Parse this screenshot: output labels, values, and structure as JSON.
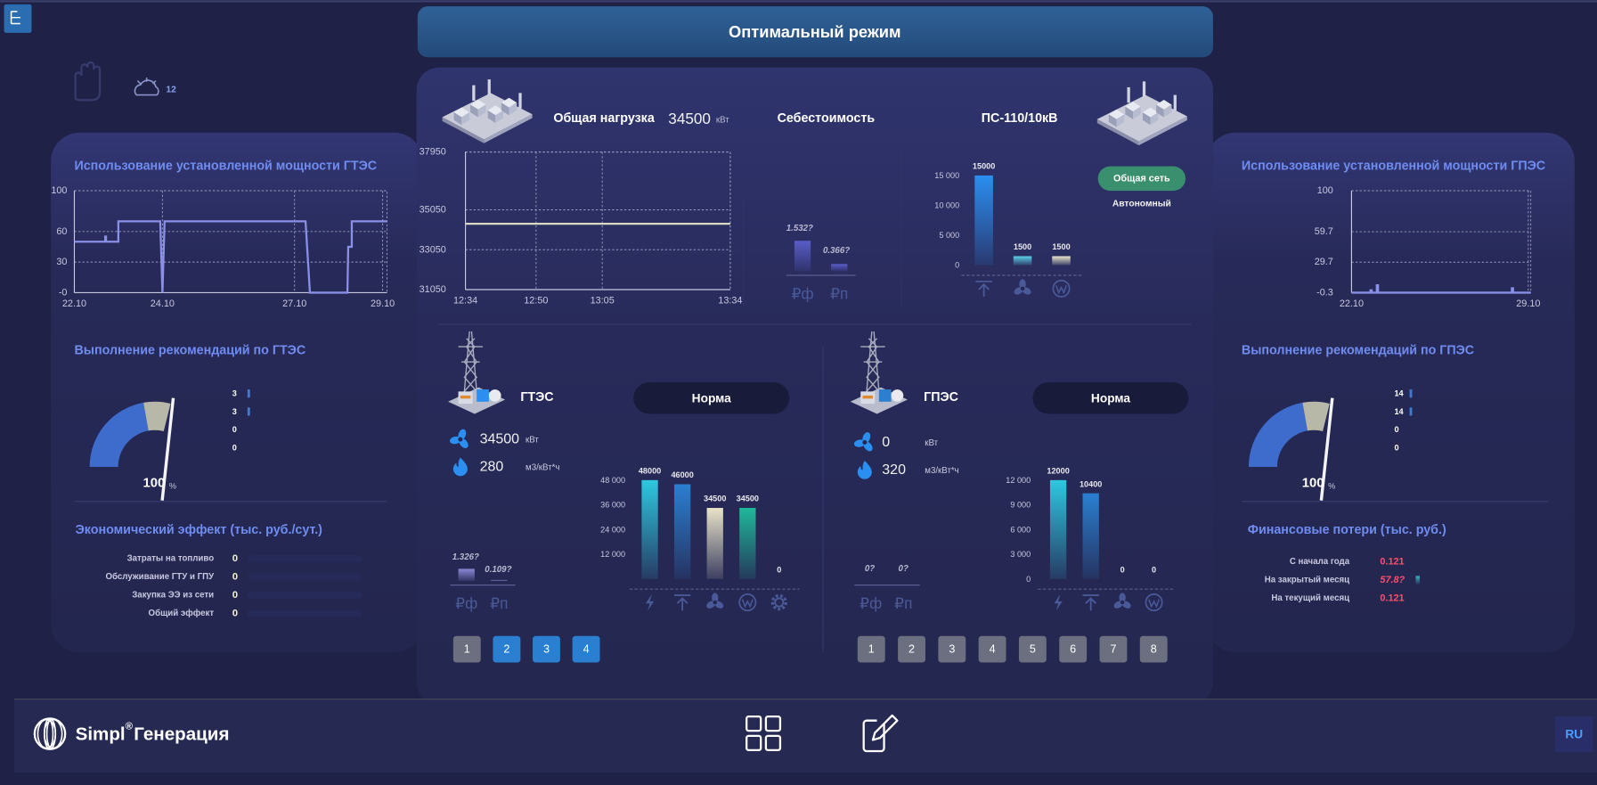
{
  "header": {
    "title": "Оптимальный режим"
  },
  "weather": {
    "temperature": 12
  },
  "gtes_usage": {
    "title": "Использование установленной мощности ГТЭС",
    "xlim": [
      22,
      29.1
    ],
    "ylim": [
      0,
      100
    ],
    "xticks": [
      {
        "value": 22,
        "label": "22.10"
      },
      {
        "value": 24,
        "label": "24.10"
      },
      {
        "value": 27,
        "label": "27.10"
      },
      {
        "value": 29,
        "label": "29.10"
      }
    ],
    "yticks": [
      {
        "value": 0,
        "label": "-0"
      },
      30,
      60,
      100
    ],
    "x": [
      22,
      22.7,
      22.7,
      22.72,
      22.72,
      23,
      23,
      23.95,
      24,
      24.05,
      27.25,
      27.35,
      28.2,
      28.22,
      28.3,
      28.3,
      29.1
    ],
    "values": [
      50,
      50,
      55,
      55,
      50,
      50,
      70,
      70,
      0,
      70,
      70,
      0,
      0,
      45,
      45,
      70,
      70
    ],
    "color": "#8a8fe8"
  },
  "gtes_recommendations": {
    "title": "Выполнение рекомендаций по ГТЭС",
    "value": 100,
    "unit": "%",
    "legend": [
      3,
      3,
      0,
      0
    ]
  },
  "economic_effect": {
    "title": "Экономический эффект (тыс. руб./сут.)",
    "rows": [
      {
        "label": "Затраты на топливо",
        "value": 0
      },
      {
        "label": "Обслуживание ГТУ и ГПУ",
        "value": 0
      },
      {
        "label": "Закупка ЭЭ из сети",
        "value": 0
      },
      {
        "label": "Общий эффект",
        "value": 0
      }
    ]
  },
  "total_load": {
    "title": "Общая нагрузка",
    "value": 34500,
    "unit": "кВт",
    "xlim": [
      "12:34",
      "13:34"
    ],
    "xticks": [
      "12:34",
      "12:50",
      "13:05",
      "13:34"
    ],
    "ylim": [
      31050,
      37950
    ],
    "yticks": [
      31050,
      33050,
      35050,
      37950
    ],
    "x": [
      "12:34",
      "13:34"
    ],
    "values": [
      34350,
      34350
    ],
    "color": "#d8d8c4"
  },
  "cost": {
    "title": "Себестоимость",
    "categories": [
      "₽ф",
      "₽п"
    ],
    "values": [
      1.532,
      0.366
    ],
    "value_labels": [
      "1.532?",
      "0.366?"
    ],
    "color": "#5a5cc8"
  },
  "substation": {
    "title": "ПС-110/10кВ",
    "ylim": [
      0,
      15000
    ],
    "yticks": [
      0,
      {
        "value": 5000,
        "label": "5 000"
      },
      {
        "value": 10000,
        "label": "10 000"
      },
      {
        "value": 15000,
        "label": "15 000"
      }
    ],
    "values": [
      15000,
      1500,
      1500
    ],
    "colors": [
      "#2a8ff0",
      "#5ad0e8",
      "#e8e4c8"
    ],
    "mode_active": "Общая сеть",
    "mode_inactive": "Автономный"
  },
  "gtes": {
    "name": "ГТЭС",
    "status": "Норма",
    "power": 34500,
    "power_unit": "кВт",
    "fuel": 280,
    "fuel_unit": "м3/кВт*ч",
    "cost": {
      "categories": [
        "₽ф",
        "₽п"
      ],
      "values": [
        1.326,
        0.109
      ],
      "value_labels": [
        "1.326?",
        "0.109?"
      ],
      "color": "#8a88d8"
    },
    "production": {
      "ylim": [
        0,
        48000
      ],
      "yticks": [
        {
          "value": 12000,
          "label": "12 000"
        },
        {
          "value": 24000,
          "label": "24 000"
        },
        {
          "value": 36000,
          "label": "36 000"
        },
        {
          "value": 48000,
          "label": "48 000"
        }
      ],
      "values": [
        48000,
        46000,
        34500,
        34500,
        0
      ],
      "colors": [
        "#2ec8e0",
        "#2a7fd0",
        "#e8e4c8",
        "#1fb89a",
        "#6a6e90"
      ]
    },
    "units": [
      {
        "number": 1,
        "active": false
      },
      {
        "number": 2,
        "active": true
      },
      {
        "number": 3,
        "active": true
      },
      {
        "number": 4,
        "active": true
      }
    ]
  },
  "gpes": {
    "name": "ГПЭС",
    "status": "Норма",
    "power": 0,
    "power_unit": "кВт",
    "fuel": 320,
    "fuel_unit": "м3/кВт*ч",
    "cost": {
      "categories": [
        "₽ф",
        "₽п"
      ],
      "values": [
        0,
        0
      ],
      "value_labels": [
        "0?",
        "0?"
      ],
      "color": "#8a88d8"
    },
    "production": {
      "ylim": [
        0,
        12000
      ],
      "yticks": [
        0,
        {
          "value": 3000,
          "label": "3 000"
        },
        {
          "value": 6000,
          "label": "6 000"
        },
        {
          "value": 9000,
          "label": "9 000"
        },
        {
          "value": 12000,
          "label": "12 000"
        }
      ],
      "values": [
        12000,
        10400,
        0,
        0
      ],
      "colors": [
        "#2ec8e0",
        "#2a7fd0",
        "#e8e4c8",
        "#1fb89a"
      ]
    },
    "units": [
      {
        "number": 1,
        "active": false
      },
      {
        "number": 2,
        "active": false
      },
      {
        "number": 3,
        "active": false
      },
      {
        "number": 4,
        "active": false
      },
      {
        "number": 5,
        "active": false
      },
      {
        "number": 6,
        "active": false
      },
      {
        "number": 7,
        "active": false
      },
      {
        "number": 8,
        "active": false
      }
    ]
  },
  "gpes_usage": {
    "title": "Использование установленной мощности ГПЭС",
    "xlim": [
      22,
      29.1
    ],
    "ylim": [
      -0.3,
      100
    ],
    "xticks": [
      {
        "value": 22,
        "label": "22.10"
      },
      {
        "value": 29,
        "label": "29.10"
      }
    ],
    "yticks": [
      -0.3,
      29.7,
      59.7,
      100
    ],
    "x": [
      22,
      22.75,
      22.75,
      22.8,
      22.8,
      23,
      23,
      23.05,
      23.05,
      28.35,
      28.35,
      28.4,
      28.4,
      29.1
    ],
    "values": [
      -0.3,
      -0.3,
      2,
      2,
      -0.3,
      -0.3,
      7,
      7,
      -0.3,
      -0.3,
      4,
      4,
      -0.3,
      -0.3
    ],
    "color": "#8a8fe8"
  },
  "gpes_recommendations": {
    "title": "Выполнение рекомендаций по ГПЭС",
    "value": 100,
    "unit": "%",
    "legend": [
      14,
      14,
      0,
      0
    ]
  },
  "financial_losses": {
    "title": "Финансовые потери (тыс. руб.)",
    "rows": [
      {
        "label": "С начала года",
        "value": 0.121
      },
      {
        "label": "На закрытый месяц",
        "value": 57.8,
        "value_label": "57.8?"
      },
      {
        "label": "На текущий месяц",
        "value": 0.121
      }
    ]
  },
  "footer": {
    "brand": "Simpl",
    "registered": "®",
    "product": "Генерация",
    "language": "RU"
  }
}
